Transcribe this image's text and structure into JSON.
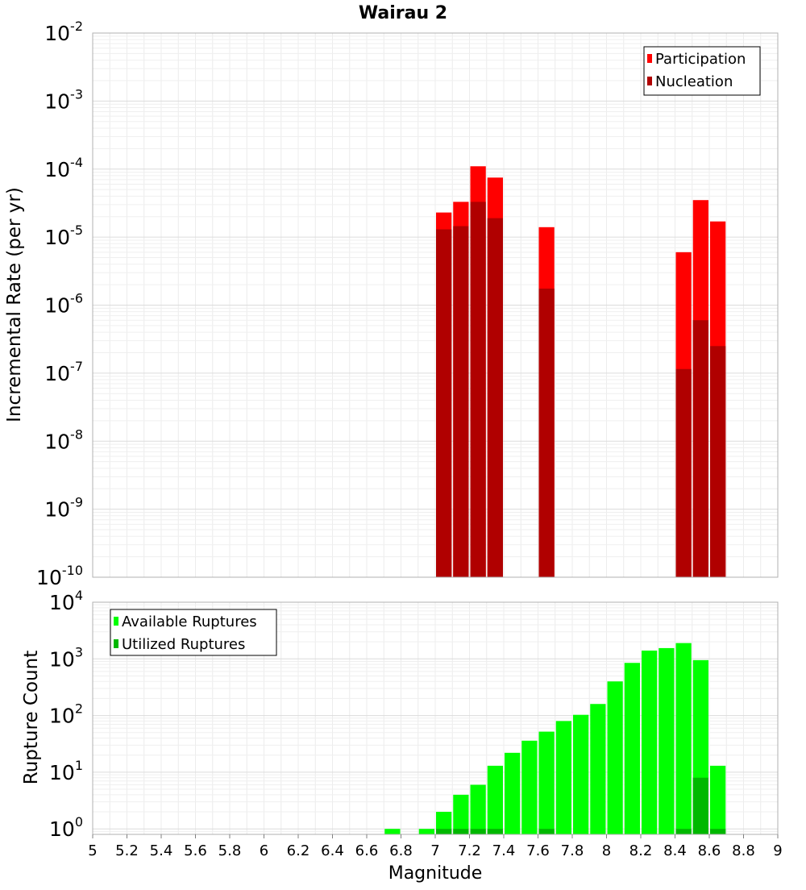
{
  "chart_data": [
    {
      "type": "bar",
      "title": "Wairau 2",
      "xlabel": "",
      "ylabel": "Incremental Rate (per yr)",
      "log_scale_y": true,
      "xlim": [
        5,
        9
      ],
      "ylim": [
        1e-10,
        0.01
      ],
      "y_ticks": [
        {
          "base": "10",
          "exp": "-10",
          "value": 1e-10
        },
        {
          "base": "10",
          "exp": "-9",
          "value": 1e-09
        },
        {
          "base": "10",
          "exp": "-8",
          "value": 1e-08
        },
        {
          "base": "10",
          "exp": "-7",
          "value": 1e-07
        },
        {
          "base": "10",
          "exp": "-6",
          "value": 1e-06
        },
        {
          "base": "10",
          "exp": "-5",
          "value": 1e-05
        },
        {
          "base": "10",
          "exp": "-4",
          "value": 0.0001
        },
        {
          "base": "10",
          "exp": "-3",
          "value": 0.001
        },
        {
          "base": "10",
          "exp": "-2",
          "value": 0.01
        }
      ],
      "grid": true,
      "legend_position": "top-right",
      "bin_width": 0.1,
      "series": [
        {
          "name": "Participation",
          "color": "#ff0000",
          "x": [
            7.05,
            7.15,
            7.25,
            7.35,
            7.65,
            8.45,
            8.55,
            8.65
          ],
          "values": [
            2.3e-05,
            3.3e-05,
            0.00011,
            7.5e-05,
            1.4e-05,
            6e-06,
            3.5e-05,
            1.7e-05
          ]
        },
        {
          "name": "Nucleation",
          "color": "#b00000",
          "x": [
            7.05,
            7.15,
            7.25,
            7.35,
            7.65,
            8.45,
            8.55,
            8.65
          ],
          "values": [
            1.3e-05,
            1.45e-05,
            3.3e-05,
            1.9e-05,
            1.75e-06,
            1.15e-07,
            6e-07,
            2.5e-07
          ]
        }
      ]
    },
    {
      "type": "bar",
      "title": "",
      "xlabel": "Magnitude",
      "ylabel": "Rupture Count",
      "log_scale_y": true,
      "xlim": [
        5,
        9
      ],
      "ylim": [
        0.8,
        10000
      ],
      "x_ticks": [
        "5",
        "5.2",
        "5.4",
        "5.6",
        "5.8",
        "6",
        "6.2",
        "6.4",
        "6.6",
        "6.8",
        "7",
        "7.2",
        "7.4",
        "7.6",
        "7.8",
        "8",
        "8.2",
        "8.4",
        "8.6",
        "8.8",
        "9"
      ],
      "y_ticks": [
        {
          "base": "10",
          "exp": "0",
          "value": 1
        },
        {
          "base": "10",
          "exp": "1",
          "value": 10
        },
        {
          "base": "10",
          "exp": "2",
          "value": 100
        },
        {
          "base": "10",
          "exp": "3",
          "value": 1000
        },
        {
          "base": "10",
          "exp": "4",
          "value": 10000
        }
      ],
      "grid": true,
      "legend_position": "top-left",
      "bin_width": 0.1,
      "series": [
        {
          "name": "Available Ruptures",
          "color": "#00ff00",
          "x": [
            6.75,
            6.95,
            7.05,
            7.15,
            7.25,
            7.35,
            7.45,
            7.55,
            7.65,
            7.75,
            7.85,
            7.95,
            8.05,
            8.15,
            8.25,
            8.35,
            8.45,
            8.55,
            8.65
          ],
          "values": [
            1,
            1,
            2,
            4,
            6,
            13,
            22,
            36,
            52,
            80,
            103,
            160,
            400,
            850,
            1400,
            1550,
            1900,
            950,
            13
          ]
        },
        {
          "name": "Utilized Ruptures",
          "color": "#00b800",
          "x": [
            7.05,
            7.15,
            7.25,
            7.35,
            7.65,
            8.45,
            8.55,
            8.65
          ],
          "values": [
            1,
            1,
            1,
            1,
            1,
            1,
            8,
            1
          ]
        }
      ]
    }
  ]
}
